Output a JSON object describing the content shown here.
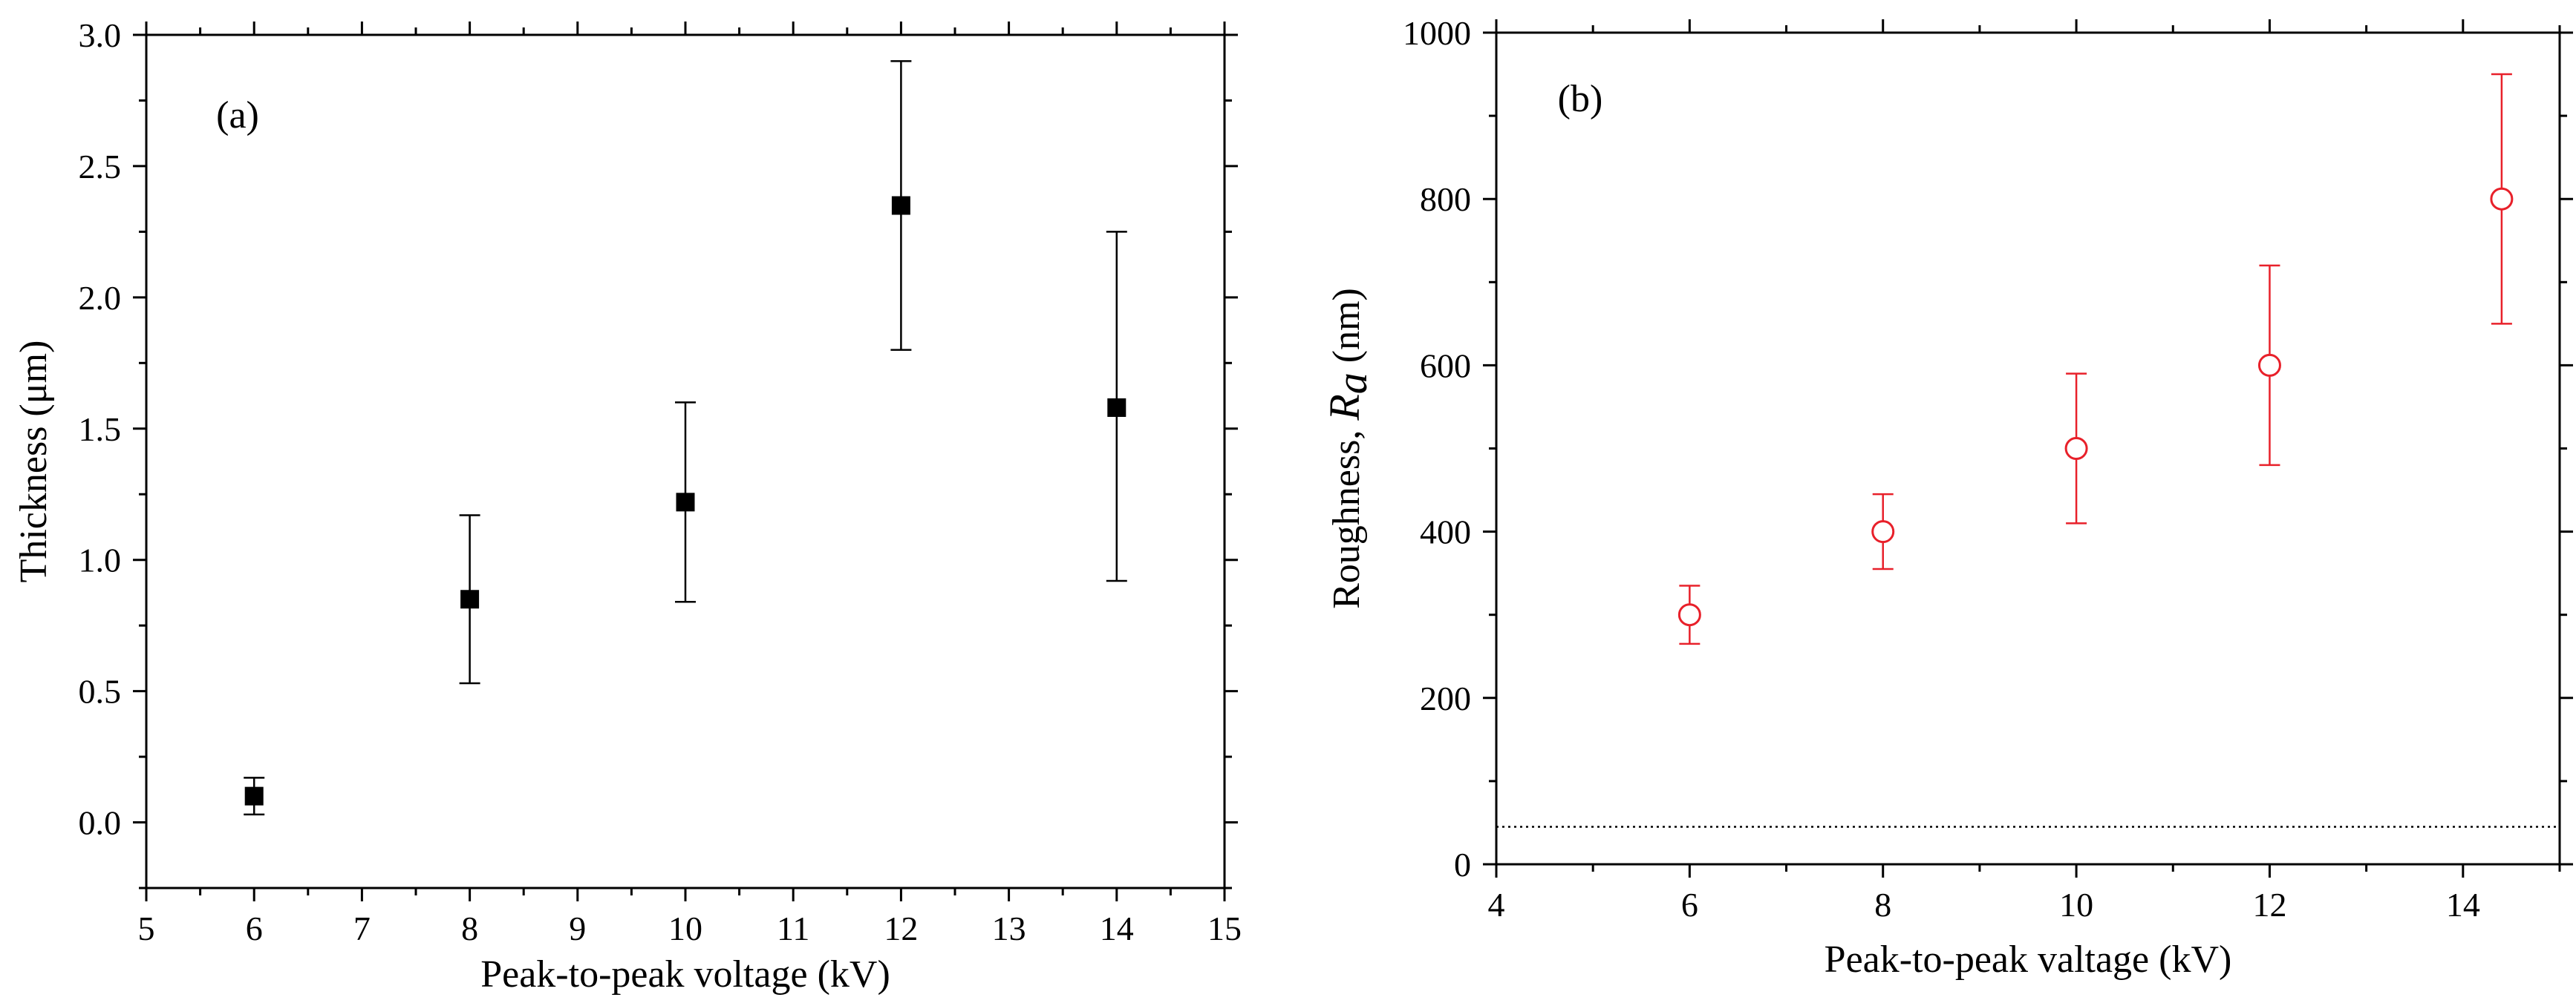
{
  "chart_data": [
    {
      "type": "scatter",
      "panel_label": "(a)",
      "xlabel": "Peak-to-peak voltage (kV)",
      "ylabel": "Thickness (μm)",
      "xlim": [
        5,
        15
      ],
      "ylim": [
        -0.25,
        3.0
      ],
      "xticks": [
        5,
        6,
        7,
        8,
        9,
        10,
        11,
        12,
        13,
        14,
        15
      ],
      "yticks": [
        0.0,
        0.5,
        1.0,
        1.5,
        2.0,
        2.5,
        3.0
      ],
      "xtick_labels": [
        "5",
        "6",
        "7",
        "8",
        "9",
        "10",
        "11",
        "12",
        "13",
        "14",
        "15"
      ],
      "ytick_labels": [
        "0.0",
        "0.5",
        "1.0",
        "1.5",
        "2.0",
        "2.5",
        "3.0"
      ],
      "marker": "filled-square",
      "color": "#000000",
      "grid": false,
      "series": [
        {
          "x": [
            6,
            8,
            10,
            12,
            14
          ],
          "y": [
            0.1,
            0.85,
            1.22,
            2.35,
            1.58
          ],
          "err_low": [
            0.03,
            0.53,
            0.84,
            1.8,
            0.92
          ],
          "err_high": [
            0.17,
            1.17,
            1.6,
            2.9,
            2.25
          ]
        }
      ]
    },
    {
      "type": "scatter",
      "panel_label": "(b)",
      "xlabel": "Peak-to-peak valtage (kV)",
      "ylabel_prefix": "Roughness, ",
      "ylabel_symbol": "R",
      "ylabel_subscript": "a",
      "ylabel_suffix": " (nm)",
      "xlim": [
        4,
        15
      ],
      "ylim": [
        0,
        1000
      ],
      "xticks": [
        4,
        6,
        8,
        10,
        12,
        14
      ],
      "yticks": [
        0,
        200,
        400,
        600,
        800,
        1000
      ],
      "xtick_labels": [
        "4",
        "6",
        "8",
        "10",
        "12",
        "14"
      ],
      "ytick_labels": [
        "0",
        "200",
        "400",
        "600",
        "800",
        "1000"
      ],
      "marker": "open-circle",
      "color": "#e8202a",
      "grid": false,
      "reference_line": {
        "y": 45,
        "style": "dotted",
        "color": "#000000"
      },
      "series": [
        {
          "x": [
            6,
            8,
            10,
            12,
            14.4
          ],
          "y": [
            300,
            400,
            500,
            600,
            800
          ],
          "err_low": [
            265,
            355,
            410,
            480,
            650
          ],
          "err_high": [
            335,
            445,
            590,
            720,
            950
          ]
        }
      ]
    }
  ]
}
